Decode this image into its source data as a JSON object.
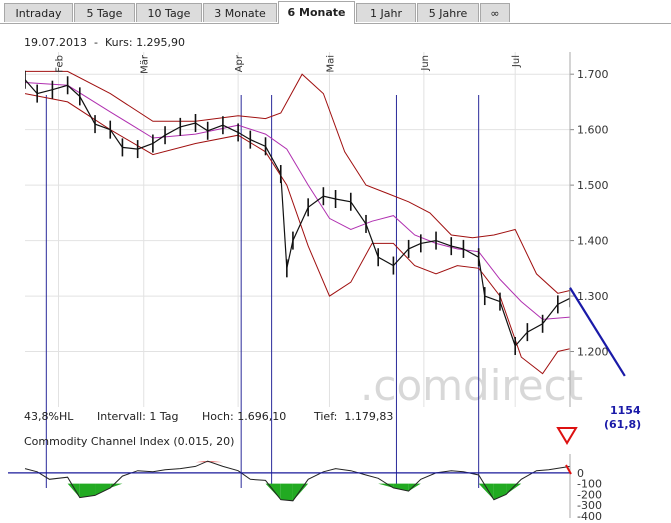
{
  "tabs": [
    {
      "label": "Intraday",
      "active": false
    },
    {
      "label": "5 Tage",
      "active": false
    },
    {
      "label": "10 Tage",
      "active": false
    },
    {
      "label": "3 Monate",
      "active": false
    },
    {
      "label": "6 Monate",
      "active": true
    },
    {
      "label": "1 Jahr",
      "active": false
    },
    {
      "label": "5 Jahre",
      "active": false
    },
    {
      "label": "∞",
      "active": false
    }
  ],
  "header": {
    "date": "19.07.2013",
    "price_label": "Kurs:",
    "price_value": "1.295,90"
  },
  "stats": {
    "hl": "43,8%HL",
    "interval_label": "Intervall:",
    "interval_value": "1 Tag",
    "high_label": "Hoch:",
    "high_value": "1.696,10",
    "low_label": "Tief:",
    "low_value": "1.179,83"
  },
  "watermark": ".comdirect",
  "projection": {
    "label": "1154",
    "sublabel": "(61,8)",
    "color": "#1a1aa8"
  },
  "cci": {
    "title": "Commodity Channel Index (0.015, 20)",
    "ticks": [
      "0",
      "-100",
      "-200",
      "-300",
      "-400"
    ]
  },
  "colors": {
    "price": "#111111",
    "bollinger": "#a01010",
    "ma": "#b030b0",
    "cci_neg": "#22aa22",
    "cci_pos": "#dd2222",
    "vline": "#2a2a9a"
  },
  "chart_data": {
    "type": "line",
    "title": "",
    "months": [
      "Feb",
      "Mär",
      "Apr",
      "Mai",
      "Jun",
      "Jul"
    ],
    "ylim": [
      1100,
      1740
    ],
    "yticks": [
      1700,
      1600,
      1500,
      1400,
      1300,
      1200
    ],
    "ytick_labels": [
      "1.700",
      "1.600",
      "1.500",
      "1.400",
      "1.300",
      "1.200"
    ],
    "x_start": "2013-01-21",
    "x_end": "2013-07-19",
    "series": [
      {
        "key": "close",
        "x": [
          "2013-01-21",
          "2013-01-25",
          "2013-01-30",
          "2013-02-04",
          "2013-02-08",
          "2013-02-13",
          "2013-02-18",
          "2013-02-22",
          "2013-02-27",
          "2013-03-04",
          "2013-03-08",
          "2013-03-13",
          "2013-03-18",
          "2013-03-22",
          "2013-03-27",
          "2013-04-01",
          "2013-04-05",
          "2013-04-10",
          "2013-04-15",
          "2013-04-17",
          "2013-04-19",
          "2013-04-24",
          "2013-04-29",
          "2013-05-03",
          "2013-05-08",
          "2013-05-13",
          "2013-05-17",
          "2013-05-22",
          "2013-05-27",
          "2013-05-31",
          "2013-06-05",
          "2013-06-10",
          "2013-06-14",
          "2013-06-19",
          "2013-06-21",
          "2013-06-26",
          "2013-07-01",
          "2013-07-05",
          "2013-07-10",
          "2013-07-15",
          "2013-07-19"
        ],
        "values": [
          1690,
          1665,
          1672,
          1680,
          1660,
          1610,
          1600,
          1568,
          1565,
          1575,
          1590,
          1605,
          1612,
          1598,
          1608,
          1595,
          1582,
          1570,
          1520,
          1350,
          1400,
          1460,
          1480,
          1475,
          1470,
          1430,
          1370,
          1355,
          1385,
          1395,
          1400,
          1390,
          1385,
          1370,
          1300,
          1290,
          1210,
          1235,
          1250,
          1285,
          1296
        ]
      },
      {
        "key": "bollinger_upper",
        "x": [
          "2013-01-21",
          "2013-02-04",
          "2013-02-18",
          "2013-03-04",
          "2013-03-18",
          "2013-04-01",
          "2013-04-10",
          "2013-04-15",
          "2013-04-22",
          "2013-04-29",
          "2013-05-06",
          "2013-05-13",
          "2013-05-20",
          "2013-05-27",
          "2013-06-03",
          "2013-06-10",
          "2013-06-17",
          "2013-06-24",
          "2013-07-01",
          "2013-07-08",
          "2013-07-15",
          "2013-07-19"
        ],
        "values": [
          1705,
          1705,
          1665,
          1615,
          1615,
          1625,
          1620,
          1630,
          1700,
          1665,
          1560,
          1500,
          1485,
          1470,
          1450,
          1410,
          1405,
          1410,
          1420,
          1340,
          1305,
          1310
        ]
      },
      {
        "key": "bollinger_lower",
        "x": [
          "2013-01-21",
          "2013-02-04",
          "2013-02-18",
          "2013-03-04",
          "2013-03-18",
          "2013-04-01",
          "2013-04-10",
          "2013-04-17",
          "2013-04-24",
          "2013-05-01",
          "2013-05-08",
          "2013-05-15",
          "2013-05-22",
          "2013-05-29",
          "2013-06-05",
          "2013-06-12",
          "2013-06-19",
          "2013-06-26",
          "2013-07-03",
          "2013-07-10",
          "2013-07-15",
          "2013-07-19"
        ],
        "values": [
          1665,
          1650,
          1600,
          1555,
          1575,
          1590,
          1560,
          1500,
          1390,
          1300,
          1325,
          1395,
          1395,
          1355,
          1340,
          1355,
          1350,
          1300,
          1190,
          1160,
          1200,
          1205
        ]
      },
      {
        "key": "moving_average",
        "x": [
          "2013-01-21",
          "2013-02-04",
          "2013-02-18",
          "2013-03-04",
          "2013-03-18",
          "2013-04-01",
          "2013-04-10",
          "2013-04-17",
          "2013-04-24",
          "2013-05-01",
          "2013-05-08",
          "2013-05-15",
          "2013-05-22",
          "2013-05-29",
          "2013-06-05",
          "2013-06-12",
          "2013-06-19",
          "2013-06-26",
          "2013-07-03",
          "2013-07-10",
          "2013-07-19"
        ],
        "values": [
          1685,
          1680,
          1632,
          1585,
          1592,
          1608,
          1592,
          1565,
          1500,
          1440,
          1420,
          1435,
          1445,
          1410,
          1395,
          1385,
          1380,
          1330,
          1290,
          1258,
          1262
        ]
      }
    ],
    "vlines": [
      "2013-01-28",
      "2013-04-02",
      "2013-04-12",
      "2013-05-23",
      "2013-06-19"
    ],
    "projection_line": {
      "x": [
        "2013-07-19",
        "2013-08-06"
      ],
      "values": [
        1315,
        1156
      ]
    },
    "cci": {
      "ylim": [
        -420,
        120
      ],
      "x": [
        "2013-01-21",
        "2013-01-25",
        "2013-01-29",
        "2013-02-04",
        "2013-02-08",
        "2013-02-13",
        "2013-02-18",
        "2013-02-22",
        "2013-02-27",
        "2013-03-04",
        "2013-03-08",
        "2013-03-13",
        "2013-03-18",
        "2013-03-22",
        "2013-03-27",
        "2013-04-01",
        "2013-04-05",
        "2013-04-10",
        "2013-04-15",
        "2013-04-19",
        "2013-04-24",
        "2013-04-29",
        "2013-05-03",
        "2013-05-08",
        "2013-05-13",
        "2013-05-17",
        "2013-05-22",
        "2013-05-27",
        "2013-05-31",
        "2013-06-05",
        "2013-06-10",
        "2013-06-14",
        "2013-06-19",
        "2013-06-24",
        "2013-06-28",
        "2013-07-03",
        "2013-07-08",
        "2013-07-12",
        "2013-07-19"
      ],
      "values": [
        40,
        10,
        -60,
        -40,
        -230,
        -210,
        -140,
        -30,
        20,
        10,
        30,
        40,
        60,
        110,
        60,
        20,
        -60,
        -70,
        -250,
        -260,
        -60,
        10,
        40,
        20,
        -20,
        -50,
        -140,
        -170,
        -60,
        0,
        20,
        10,
        -20,
        -250,
        -200,
        -60,
        20,
        30,
        60
      ]
    }
  }
}
